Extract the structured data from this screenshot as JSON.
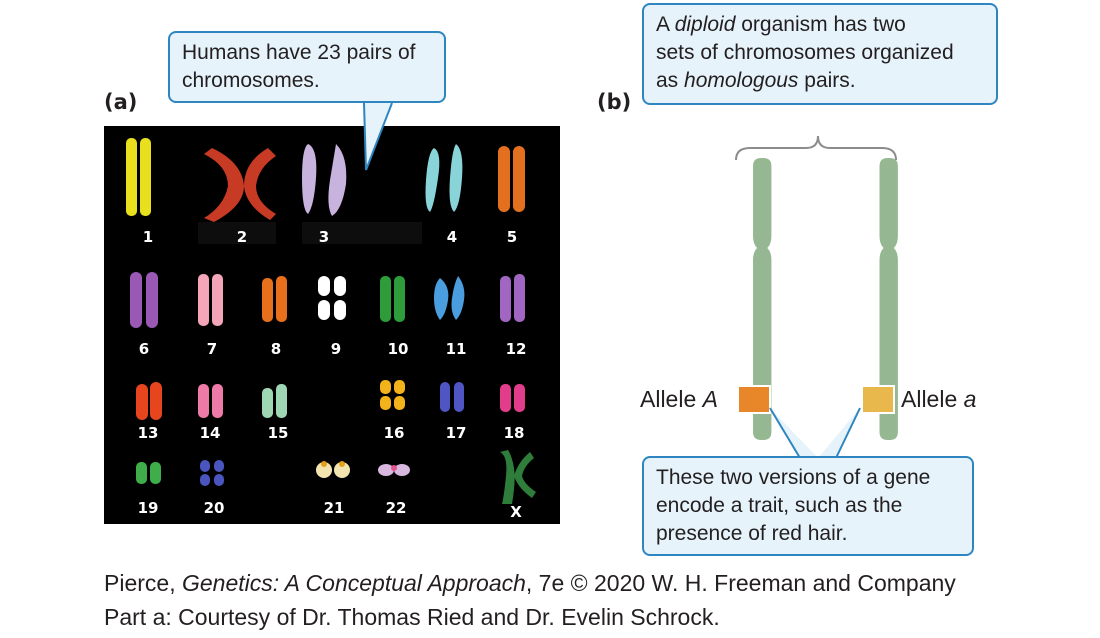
{
  "panel_a": {
    "label": "(a)",
    "callout": [
      "Humans have 23 pairs of",
      "chromosomes."
    ],
    "karyotype_labels": [
      "1",
      "2",
      "3",
      "4",
      "5",
      "6",
      "7",
      "8",
      "9",
      "10",
      "11",
      "12",
      "13",
      "14",
      "15",
      "16",
      "17",
      "18",
      "19",
      "20",
      "21",
      "22",
      "X"
    ]
  },
  "panel_b": {
    "label": "(b)",
    "top_callout": {
      "line1_pre": "A ",
      "line1_em": "diploid",
      "line1_post": " organism has two",
      "line2": "sets of chromosomes organized",
      "line3_pre": "as ",
      "line3_em": "homologous",
      "line3_post": " pairs."
    },
    "allele_left": {
      "prefix": "Allele ",
      "symbol": "A"
    },
    "allele_right": {
      "prefix": "Allele ",
      "symbol": "a"
    },
    "bottom_callout": [
      "These two versions of a gene",
      "encode a trait, such as the",
      "presence of red hair."
    ]
  },
  "credit": {
    "line1_pre": "Pierce, ",
    "line1_em": "Genetics: A Conceptual Approach",
    "line1_post": ", 7e © 2020 W. H. Freeman and Company",
    "line2": "Part a: Courtesy of Dr. Thomas Ried and Dr. Evelin Schrock."
  },
  "colors": {
    "callout_fill": "#e6f3fb",
    "callout_border": "#2e86c1",
    "chromosome_green": "#95b892",
    "allele_A": "#e8862a",
    "allele_a": "#e9b84c"
  }
}
